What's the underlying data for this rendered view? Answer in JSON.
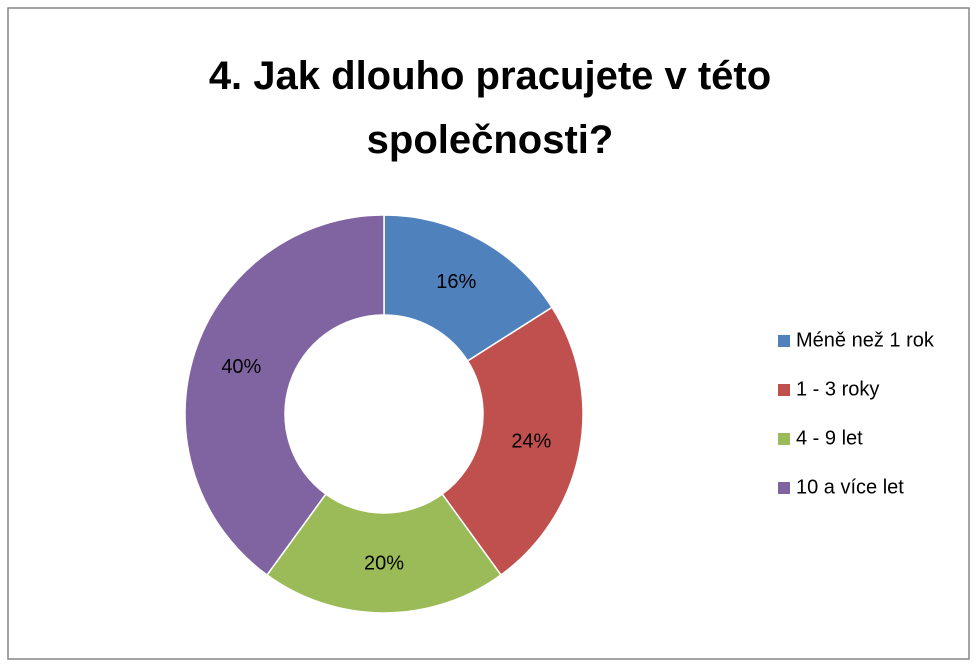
{
  "chart_data": {
    "type": "donut",
    "title": "4. Jak dlouho pracujete v této společnosti?",
    "categories": [
      "Méně než 1 rok",
      "1 -  3 roky",
      "4 - 9 let",
      "10 a více let"
    ],
    "values": [
      16,
      24,
      20,
      40
    ],
    "value_labels": [
      "16%",
      "24%",
      "20%",
      "40%"
    ],
    "colors": [
      "#4f81bd",
      "#c0504d",
      "#9bbb59",
      "#8064a2"
    ],
    "legend": "right"
  }
}
